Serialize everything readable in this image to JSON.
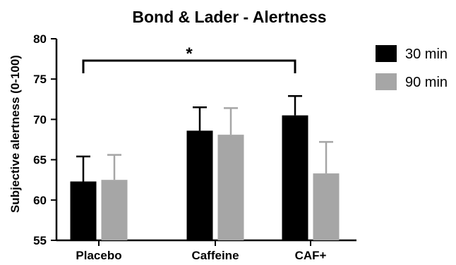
{
  "chart_data": {
    "type": "bar",
    "title": "Bond & Lader - Alertness",
    "xlabel": "",
    "ylabel": "Subjective alertness (0-100)",
    "ylim": [
      55,
      80
    ],
    "yticks": [
      "55",
      "60",
      "65",
      "70",
      "75",
      "80"
    ],
    "categories": [
      "Placebo",
      "Caffeine",
      "CAF+"
    ],
    "series": [
      {
        "name": "30 min",
        "color": "#000000",
        "values": [
          62.3,
          68.6,
          70.5
        ],
        "errors": [
          3.1,
          2.9,
          2.4
        ]
      },
      {
        "name": "90 min",
        "color": "#a6a6a6",
        "values": [
          62.5,
          68.1,
          63.3
        ],
        "errors": [
          3.1,
          3.3,
          3.9
        ]
      }
    ],
    "annotations": [
      {
        "text": "*",
        "from_category": "Placebo",
        "to_category": "CAF+"
      }
    ],
    "grid": false,
    "legend_position": "top-right"
  }
}
